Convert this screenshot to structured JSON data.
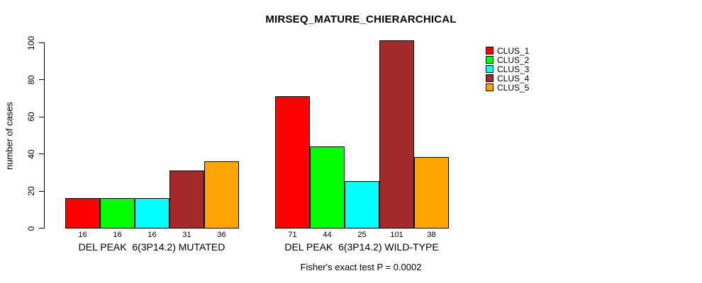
{
  "chart_data": {
    "type": "bar",
    "title": "MIRSEQ_MATURE_CHIERARCHICAL",
    "subtitle": "Fisher's exact test P = 0.0002",
    "ylabel": "number of cases",
    "ylim": [
      0,
      100
    ],
    "yticks": [
      0,
      20,
      40,
      60,
      80,
      100
    ],
    "categories": [
      "DEL PEAK  6(3P14.2) MUTATED",
      "DEL PEAK  6(3P14.2) WILD-TYPE"
    ],
    "series": [
      {
        "name": "CLUS_1",
        "color": "#FF0000",
        "values": [
          16,
          71
        ]
      },
      {
        "name": "CLUS_2",
        "color": "#00FF00",
        "values": [
          16,
          44
        ]
      },
      {
        "name": "CLUS_3",
        "color": "#00FFFF",
        "values": [
          16,
          25
        ]
      },
      {
        "name": "CLUS_4",
        "color": "#A52A2A",
        "values": [
          31,
          101
        ]
      },
      {
        "name": "CLUS_5",
        "color": "#FFA500",
        "values": [
          36,
          38
        ]
      }
    ],
    "legend_position": "right",
    "grid": false,
    "bar_border_color": "#000000",
    "background_color": "#FFFFFF"
  }
}
